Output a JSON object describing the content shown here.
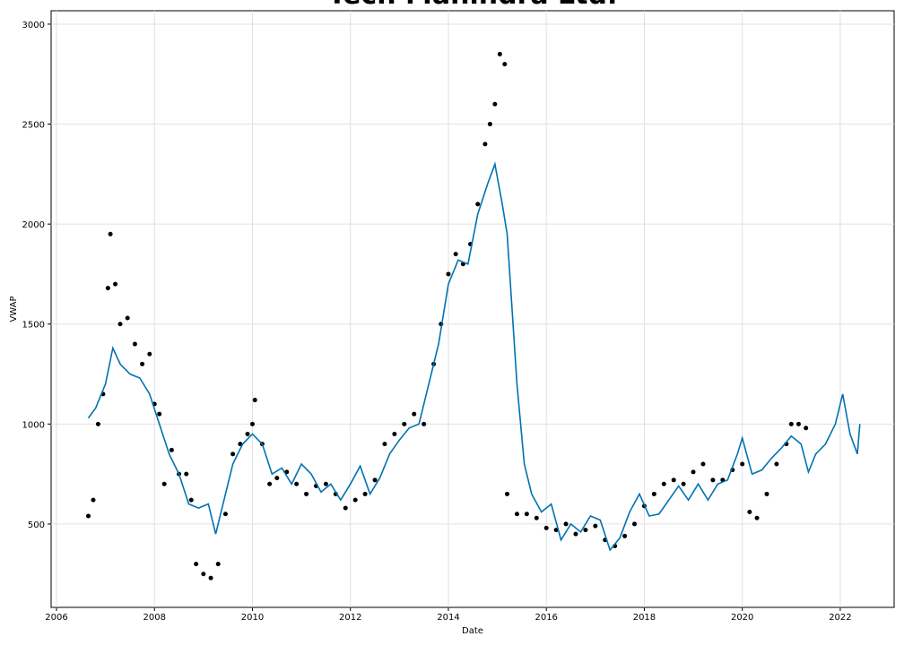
{
  "chart_data": {
    "type": "scatter",
    "title": "Tech Mahindra Ltd.",
    "x_label": "Date",
    "y_label": "VWAP",
    "xlim": [
      2005.89,
      2023.1
    ],
    "ylim": [
      83,
      3067
    ],
    "xticks": [
      2006,
      2008,
      2010,
      2012,
      2014,
      2016,
      2018,
      2020,
      2022
    ],
    "yticks": [
      500,
      1000,
      1500,
      2000,
      2500,
      3000
    ],
    "grid": true,
    "series": [
      {
        "type": "scatter",
        "color": "#000000",
        "x": [
          2006.65,
          2006.75,
          2006.85,
          2006.95,
          2007.05,
          2007.1,
          2007.2,
          2007.3,
          2007.45,
          2007.6,
          2007.75,
          2007.9,
          2008.0,
          2008.1,
          2008.2,
          2008.35,
          2008.5,
          2008.65,
          2008.75,
          2008.85,
          2009.0,
          2009.15,
          2009.3,
          2009.45,
          2009.6,
          2009.75,
          2009.9,
          2010.0,
          2010.05,
          2010.2,
          2010.35,
          2010.5,
          2010.7,
          2010.9,
          2011.1,
          2011.3,
          2011.5,
          2011.7,
          2011.9,
          2012.1,
          2012.3,
          2012.5,
          2012.7,
          2012.9,
          2013.1,
          2013.3,
          2013.5,
          2013.7,
          2013.85,
          2014.0,
          2014.15,
          2014.3,
          2014.45,
          2014.6,
          2014.75,
          2014.85,
          2014.95,
          2015.05,
          2015.15,
          2015.2,
          2015.4,
          2015.6,
          2015.8,
          2016.0,
          2016.2,
          2016.4,
          2016.6,
          2016.8,
          2017.0,
          2017.2,
          2017.4,
          2017.6,
          2017.8,
          2018.0,
          2018.2,
          2018.4,
          2018.6,
          2018.8,
          2019.0,
          2019.2,
          2019.4,
          2019.6,
          2019.8,
          2020.0,
          2020.15,
          2020.3,
          2020.5,
          2020.7,
          2020.9,
          2021.0,
          2021.15,
          2021.3
        ],
        "values": [
          540,
          620,
          1000,
          1150,
          1680,
          1950,
          1700,
          1500,
          1530,
          1400,
          1300,
          1350,
          1100,
          1050,
          700,
          870,
          750,
          750,
          620,
          300,
          250,
          230,
          300,
          550,
          850,
          900,
          950,
          1000,
          1120,
          900,
          700,
          730,
          760,
          700,
          650,
          690,
          700,
          650,
          580,
          620,
          650,
          720,
          900,
          950,
          1000,
          1050,
          1000,
          1300,
          1500,
          1750,
          1850,
          1800,
          1900,
          2100,
          2400,
          2500,
          2600,
          2850,
          2800,
          650,
          550,
          550,
          530,
          480,
          470,
          500,
          450,
          470,
          490,
          420,
          390,
          440,
          500,
          590,
          650,
          700,
          720,
          700,
          760,
          800,
          720,
          720,
          770,
          800,
          560,
          530,
          650,
          800,
          900,
          1000,
          1000,
          980
        ]
      },
      {
        "type": "line",
        "color": "#0072B2",
        "x": [
          2006.65,
          2006.8,
          2007.0,
          2007.15,
          2007.3,
          2007.5,
          2007.7,
          2007.9,
          2008.1,
          2008.3,
          2008.5,
          2008.7,
          2008.9,
          2009.1,
          2009.25,
          2009.4,
          2009.6,
          2009.8,
          2010.0,
          2010.2,
          2010.4,
          2010.6,
          2010.8,
          2011.0,
          2011.2,
          2011.4,
          2011.6,
          2011.8,
          2012.0,
          2012.2,
          2012.4,
          2012.6,
          2012.8,
          2013.0,
          2013.2,
          2013.4,
          2013.6,
          2013.8,
          2014.0,
          2014.2,
          2014.4,
          2014.6,
          2014.8,
          2014.95,
          2015.1,
          2015.2,
          2015.4,
          2015.55,
          2015.7,
          2015.9,
          2016.1,
          2016.3,
          2016.5,
          2016.7,
          2016.9,
          2017.1,
          2017.3,
          2017.5,
          2017.7,
          2017.9,
          2018.1,
          2018.3,
          2018.5,
          2018.7,
          2018.9,
          2019.1,
          2019.3,
          2019.5,
          2019.7,
          2019.9,
          2020.0,
          2020.2,
          2020.4,
          2020.6,
          2020.8,
          2021.0,
          2021.2,
          2021.35,
          2021.5,
          2021.7,
          2021.9,
          2022.05,
          2022.2,
          2022.35,
          2022.4
        ],
        "values": [
          1030,
          1080,
          1200,
          1380,
          1300,
          1250,
          1230,
          1150,
          1000,
          850,
          750,
          600,
          580,
          600,
          450,
          600,
          800,
          900,
          950,
          900,
          750,
          780,
          700,
          800,
          750,
          660,
          700,
          620,
          700,
          790,
          650,
          730,
          850,
          920,
          980,
          1000,
          1200,
          1400,
          1700,
          1820,
          1800,
          2050,
          2200,
          2300,
          2100,
          1950,
          1200,
          800,
          650,
          560,
          600,
          420,
          500,
          460,
          540,
          520,
          370,
          430,
          560,
          650,
          540,
          550,
          620,
          690,
          620,
          700,
          620,
          700,
          720,
          850,
          930,
          750,
          770,
          830,
          880,
          940,
          900,
          760,
          850,
          900,
          1000,
          1150,
          950,
          850,
          1000
        ]
      }
    ]
  }
}
